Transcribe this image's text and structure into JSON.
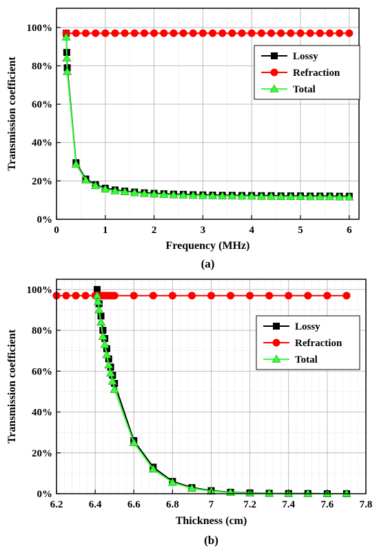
{
  "chart_data": [
    {
      "type": "line",
      "caption": "(a)",
      "xlabel": "Frequency (MHz)",
      "ylabel": "Transmission coefficient",
      "xlim": [
        0,
        6.2
      ],
      "ylim": [
        0,
        1.1
      ],
      "xticks": [
        0,
        1,
        2,
        3,
        4,
        5,
        6
      ],
      "xtick_labels": [
        "0",
        "1",
        "2",
        "3",
        "4",
        "5",
        "6"
      ],
      "yticks": [
        0,
        0.2,
        0.4,
        0.6,
        0.8,
        1.0
      ],
      "ytick_labels": [
        "0%",
        "20%",
        "40%",
        "60%",
        "80%",
        "100%"
      ],
      "grid": true,
      "legend_position": "upper-right",
      "series": [
        {
          "name": "Lossy",
          "color": "#000000",
          "marker": "square",
          "x": [
            0.2,
            0.21,
            0.22,
            0.4,
            0.6,
            0.8,
            1.0,
            1.2,
            1.4,
            1.6,
            1.8,
            2.0,
            2.2,
            2.4,
            2.6,
            2.8,
            3.0,
            3.2,
            3.4,
            3.6,
            3.8,
            4.0,
            4.2,
            4.4,
            4.6,
            4.8,
            5.0,
            5.2,
            5.4,
            5.6,
            5.8,
            6.0
          ],
          "y": [
            0.97,
            0.87,
            0.79,
            0.295,
            0.21,
            0.18,
            0.162,
            0.153,
            0.147,
            0.142,
            0.138,
            0.135,
            0.133,
            0.131,
            0.13,
            0.128,
            0.127,
            0.126,
            0.125,
            0.125,
            0.124,
            0.124,
            0.123,
            0.123,
            0.122,
            0.122,
            0.122,
            0.121,
            0.121,
            0.121,
            0.12,
            0.12
          ]
        },
        {
          "name": "Refraction",
          "color": "#ff0000",
          "marker": "circle",
          "x": [
            0.2,
            0.4,
            0.6,
            0.8,
            1.0,
            1.2,
            1.4,
            1.6,
            1.8,
            2.0,
            2.2,
            2.4,
            2.6,
            2.8,
            3.0,
            3.2,
            3.4,
            3.6,
            3.8,
            4.0,
            4.2,
            4.4,
            4.6,
            4.8,
            5.0,
            5.2,
            5.4,
            5.6,
            5.8,
            6.0
          ],
          "y": [
            0.97,
            0.97,
            0.97,
            0.97,
            0.97,
            0.97,
            0.97,
            0.97,
            0.97,
            0.97,
            0.97,
            0.97,
            0.97,
            0.97,
            0.97,
            0.97,
            0.97,
            0.97,
            0.97,
            0.97,
            0.97,
            0.97,
            0.97,
            0.97,
            0.97,
            0.97,
            0.97,
            0.97,
            0.97,
            0.97
          ]
        },
        {
          "name": "Total",
          "color": "#33ff33",
          "marker": "triangle",
          "x": [
            0.2,
            0.21,
            0.22,
            0.4,
            0.6,
            0.8,
            1.0,
            1.2,
            1.4,
            1.6,
            1.8,
            2.0,
            2.2,
            2.4,
            2.6,
            2.8,
            3.0,
            3.2,
            3.4,
            3.6,
            3.8,
            4.0,
            4.2,
            4.4,
            4.6,
            4.8,
            5.0,
            5.2,
            5.4,
            5.6,
            5.8,
            6.0
          ],
          "y": [
            0.95,
            0.84,
            0.77,
            0.287,
            0.204,
            0.175,
            0.157,
            0.148,
            0.143,
            0.138,
            0.134,
            0.131,
            0.129,
            0.127,
            0.126,
            0.124,
            0.123,
            0.122,
            0.121,
            0.121,
            0.12,
            0.12,
            0.119,
            0.119,
            0.118,
            0.118,
            0.118,
            0.117,
            0.117,
            0.117,
            0.116,
            0.116
          ]
        }
      ]
    },
    {
      "type": "line",
      "caption": "(b)",
      "xlabel": "Thickness (cm)",
      "ylabel": "Transmission coefficient",
      "xlim": [
        6.2,
        7.8
      ],
      "ylim": [
        0,
        1.05
      ],
      "xticks": [
        6.2,
        6.4,
        6.6,
        6.8,
        7.0,
        7.2,
        7.4,
        7.6,
        7.8
      ],
      "xtick_labels": [
        "6.2",
        "6.4",
        "6.6",
        "6.8",
        "7",
        "7.2",
        "7.4",
        "7.6",
        "7.8"
      ],
      "yticks": [
        0,
        0.2,
        0.4,
        0.6,
        0.8,
        1.0
      ],
      "ytick_labels": [
        "0%",
        "20%",
        "40%",
        "60%",
        "80%",
        "100%"
      ],
      "grid": true,
      "legend_position": "upper-right",
      "series": [
        {
          "name": "Lossy",
          "color": "#000000",
          "marker": "square",
          "x": [
            6.41,
            6.415,
            6.42,
            6.43,
            6.44,
            6.45,
            6.46,
            6.47,
            6.48,
            6.49,
            6.5,
            6.6,
            6.7,
            6.8,
            6.9,
            7.0,
            7.1,
            7.2,
            7.3,
            7.4,
            7.5,
            7.6,
            7.7
          ],
          "y": [
            1.0,
            0.97,
            0.93,
            0.87,
            0.8,
            0.76,
            0.71,
            0.66,
            0.62,
            0.58,
            0.54,
            0.26,
            0.13,
            0.06,
            0.03,
            0.015,
            0.007,
            0.004,
            0.002,
            0.001,
            0.001,
            0.0,
            0.0
          ]
        },
        {
          "name": "Refraction",
          "color": "#ff0000",
          "marker": "circle",
          "x": [
            6.2,
            6.25,
            6.3,
            6.35,
            6.4,
            6.41,
            6.42,
            6.43,
            6.44,
            6.45,
            6.46,
            6.47,
            6.48,
            6.49,
            6.5,
            6.6,
            6.7,
            6.8,
            6.9,
            7.0,
            7.1,
            7.2,
            7.3,
            7.4,
            7.5,
            7.6,
            7.7
          ],
          "y": [
            0.97,
            0.97,
            0.97,
            0.97,
            0.97,
            0.97,
            0.97,
            0.97,
            0.97,
            0.97,
            0.97,
            0.97,
            0.97,
            0.97,
            0.97,
            0.97,
            0.97,
            0.97,
            0.97,
            0.97,
            0.97,
            0.97,
            0.97,
            0.97,
            0.97,
            0.97,
            0.97
          ]
        },
        {
          "name": "Total",
          "color": "#33ff33",
          "marker": "triangle",
          "x": [
            6.41,
            6.415,
            6.42,
            6.43,
            6.44,
            6.45,
            6.46,
            6.47,
            6.48,
            6.49,
            6.5,
            6.6,
            6.7,
            6.8,
            6.9,
            7.0,
            7.1,
            7.2,
            7.3,
            7.4,
            7.5,
            7.6,
            7.7
          ],
          "y": [
            0.97,
            0.94,
            0.9,
            0.84,
            0.77,
            0.73,
            0.68,
            0.63,
            0.59,
            0.55,
            0.51,
            0.25,
            0.12,
            0.055,
            0.026,
            0.012,
            0.006,
            0.003,
            0.002,
            0.001,
            0.0,
            0.0,
            0.0
          ]
        }
      ]
    }
  ]
}
